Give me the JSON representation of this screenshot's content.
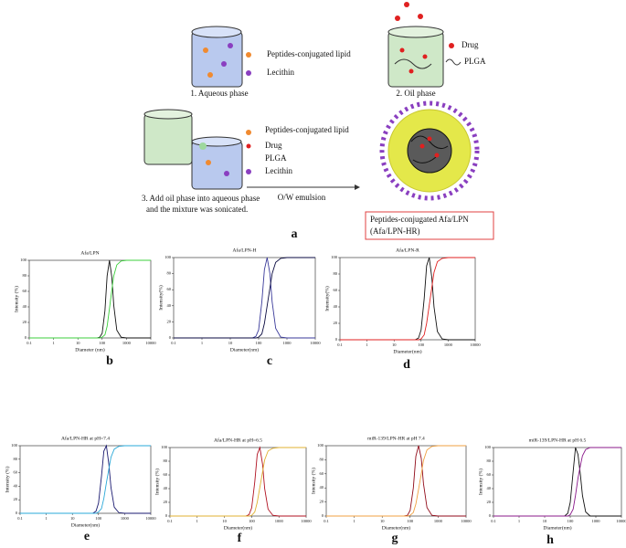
{
  "diagram": {
    "aqueous": {
      "lipid": "Peptides-conjugated lipid",
      "lecithin": "Lecithin",
      "caption": "1. Aqueous phase"
    },
    "oil": {
      "drug": "Drug",
      "plga": "PLGA",
      "caption": "2. Oil phase"
    },
    "mix": {
      "lipid": "Peptides-conjugated lipid",
      "drug": "Drug",
      "plga": "PLGA",
      "lecithin": "Lecithin",
      "caption1": "3. Add oil phase into aqueous phase",
      "caption2": "and the mixture was sonicated."
    },
    "arrow": "O/W emulsion",
    "product1": "Peptides-conjugated Afa/LPN",
    "product2": "(Afa/LPN-HR)",
    "letter": "a"
  },
  "chart_data": [
    {
      "type": "line",
      "title": "Afa/LPN",
      "x_label": "Diameter (nm)",
      "y_label": "Intensity (%)",
      "letter": "b",
      "x": [
        0.1,
        10,
        60,
        80,
        100,
        130,
        160,
        200,
        250,
        300,
        400,
        600,
        1000,
        10000
      ],
      "series": [
        {
          "color": "#111111",
          "values": [
            0,
            0,
            0,
            1,
            6,
            35,
            80,
            100,
            78,
            42,
            10,
            1,
            0,
            0
          ]
        },
        {
          "color": "#3ccf3c",
          "values": [
            0,
            0,
            0,
            0,
            1,
            4,
            15,
            38,
            62,
            80,
            94,
            99,
            100,
            100
          ]
        }
      ],
      "xlim": [
        0.1,
        10000
      ],
      "ylim": [
        0,
        100
      ],
      "xticks": [
        0.1,
        1,
        10,
        100,
        1000,
        10000
      ],
      "yticks": [
        0,
        20,
        40,
        60,
        80,
        100
      ],
      "log_x": true
    },
    {
      "type": "line",
      "title": "Afa/LPN-H",
      "x_label": "Diameter(nm)",
      "y_label": "Intensity(%)",
      "letter": "c",
      "x": [
        0.1,
        10,
        60,
        80,
        100,
        130,
        160,
        200,
        250,
        300,
        400,
        600,
        1000,
        10000
      ],
      "series": [
        {
          "color": "#3a3a9a",
          "values": [
            0,
            0,
            0,
            2,
            10,
            45,
            85,
            100,
            80,
            45,
            12,
            1,
            0,
            0
          ]
        },
        {
          "color": "#0a0a40",
          "values": [
            0,
            0,
            0,
            0,
            1,
            5,
            18,
            40,
            62,
            80,
            94,
            99,
            100,
            100
          ]
        }
      ],
      "xlim": [
        0.1,
        10000
      ],
      "ylim": [
        0,
        100
      ],
      "xticks": [
        0.1,
        1,
        10,
        100,
        1000,
        10000
      ],
      "yticks": [
        0,
        20,
        40,
        60,
        80,
        100
      ],
      "log_x": true
    },
    {
      "type": "line",
      "title": "Afa/LPN-R",
      "x_label": "Diameter(nm)",
      "y_label": "Intensity(%)",
      "letter": "d",
      "x": [
        0.1,
        10,
        60,
        80,
        100,
        130,
        160,
        200,
        250,
        300,
        400,
        600,
        1000,
        10000
      ],
      "series": [
        {
          "color": "#111111",
          "values": [
            0,
            0,
            0,
            2,
            12,
            50,
            90,
            100,
            75,
            40,
            10,
            1,
            0,
            0
          ]
        },
        {
          "color": "#e02020",
          "values": [
            0,
            0,
            0,
            0,
            1,
            6,
            20,
            42,
            64,
            82,
            95,
            99,
            100,
            100
          ]
        }
      ],
      "xlim": [
        0.1,
        10000
      ],
      "ylim": [
        0,
        100
      ],
      "xticks": [
        0.1,
        1,
        10,
        100,
        1000,
        10000
      ],
      "yticks": [
        0,
        20,
        40,
        60,
        80,
        100
      ],
      "log_x": true
    },
    {
      "type": "line",
      "title": "Afa/LPN-HR at pH=7.4",
      "x_label": "Diameter(nm)",
      "y_label": "Intensity (%)",
      "letter": "e",
      "x": [
        0.1,
        10,
        60,
        80,
        100,
        130,
        160,
        200,
        250,
        300,
        400,
        600,
        1000,
        10000
      ],
      "series": [
        {
          "color": "#1a1a70",
          "values": [
            0,
            0,
            0,
            3,
            15,
            55,
            92,
            100,
            72,
            38,
            9,
            1,
            0,
            0
          ]
        },
        {
          "color": "#2aa8d8",
          "values": [
            0,
            0,
            0,
            0,
            2,
            7,
            22,
            45,
            66,
            83,
            95,
            99,
            100,
            100
          ]
        }
      ],
      "xlim": [
        0.1,
        10000
      ],
      "ylim": [
        0,
        100
      ],
      "xticks": [
        0.1,
        1,
        10,
        100,
        1000,
        10000
      ],
      "yticks": [
        0,
        20,
        40,
        60,
        80,
        100
      ],
      "log_x": true
    },
    {
      "type": "line",
      "title": "Afa/LPN-HR at pH=6.5",
      "x_label": "Diameter(nm)",
      "y_label": "Intensity (%)",
      "letter": "f",
      "x": [
        0.1,
        10,
        60,
        80,
        100,
        130,
        160,
        200,
        250,
        300,
        400,
        600,
        1000,
        10000
      ],
      "series": [
        {
          "color": "#b01020",
          "values": [
            0,
            0,
            0,
            2,
            12,
            50,
            90,
            100,
            76,
            40,
            10,
            1,
            0,
            0
          ]
        },
        {
          "color": "#e0b030",
          "values": [
            0,
            0,
            0,
            0,
            1,
            6,
            20,
            42,
            64,
            82,
            95,
            99,
            100,
            100
          ]
        }
      ],
      "xlim": [
        0.1,
        10000
      ],
      "ylim": [
        0,
        100
      ],
      "xticks": [
        0.1,
        1,
        10,
        100,
        1000,
        10000
      ],
      "yticks": [
        0,
        20,
        40,
        60,
        80,
        100
      ],
      "log_x": true
    },
    {
      "type": "line",
      "title": "miR-139/LPN-HR at pH 7.4",
      "x_label": "Diameter(nm)",
      "y_label": "Intensity (%)",
      "letter": "g",
      "x": [
        0.1,
        10,
        60,
        80,
        100,
        130,
        160,
        200,
        250,
        300,
        400,
        600,
        1000,
        10000
      ],
      "series": [
        {
          "color": "#900a18",
          "values": [
            0,
            0,
            0,
            1,
            8,
            40,
            85,
            100,
            82,
            46,
            12,
            1,
            0,
            0
          ]
        },
        {
          "color": "#f0a040",
          "values": [
            0,
            0,
            0,
            0,
            1,
            5,
            17,
            38,
            60,
            79,
            94,
            99,
            100,
            100
          ]
        }
      ],
      "xlim": [
        0.1,
        10000
      ],
      "ylim": [
        0,
        100
      ],
      "xticks": [
        0.1,
        1,
        10,
        100,
        1000,
        10000
      ],
      "yticks": [
        0,
        20,
        40,
        60,
        80,
        100
      ],
      "log_x": true
    },
    {
      "type": "line",
      "title": "miR-139/LPN-HR at pH 6.5",
      "x_label": "Diameter(nm)",
      "y_label": "Intensity (%)",
      "letter": "h",
      "x": [
        0.1,
        10,
        60,
        80,
        100,
        130,
        160,
        200,
        250,
        300,
        400,
        600,
        1000,
        10000
      ],
      "series": [
        {
          "color": "#111111",
          "values": [
            0,
            0,
            0,
            4,
            20,
            65,
            100,
            90,
            60,
            30,
            6,
            0,
            0,
            0
          ]
        },
        {
          "color": "#8b1a8b",
          "values": [
            0,
            0,
            0,
            0,
            2,
            10,
            30,
            55,
            74,
            88,
            97,
            100,
            100,
            100
          ]
        }
      ],
      "xlim": [
        0.1,
        10000
      ],
      "ylim": [
        0,
        100
      ],
      "xticks": [
        0.1,
        1,
        10,
        100,
        1000,
        10000
      ],
      "yticks": [
        0,
        20,
        40,
        60,
        80,
        100
      ],
      "log_x": true
    }
  ]
}
